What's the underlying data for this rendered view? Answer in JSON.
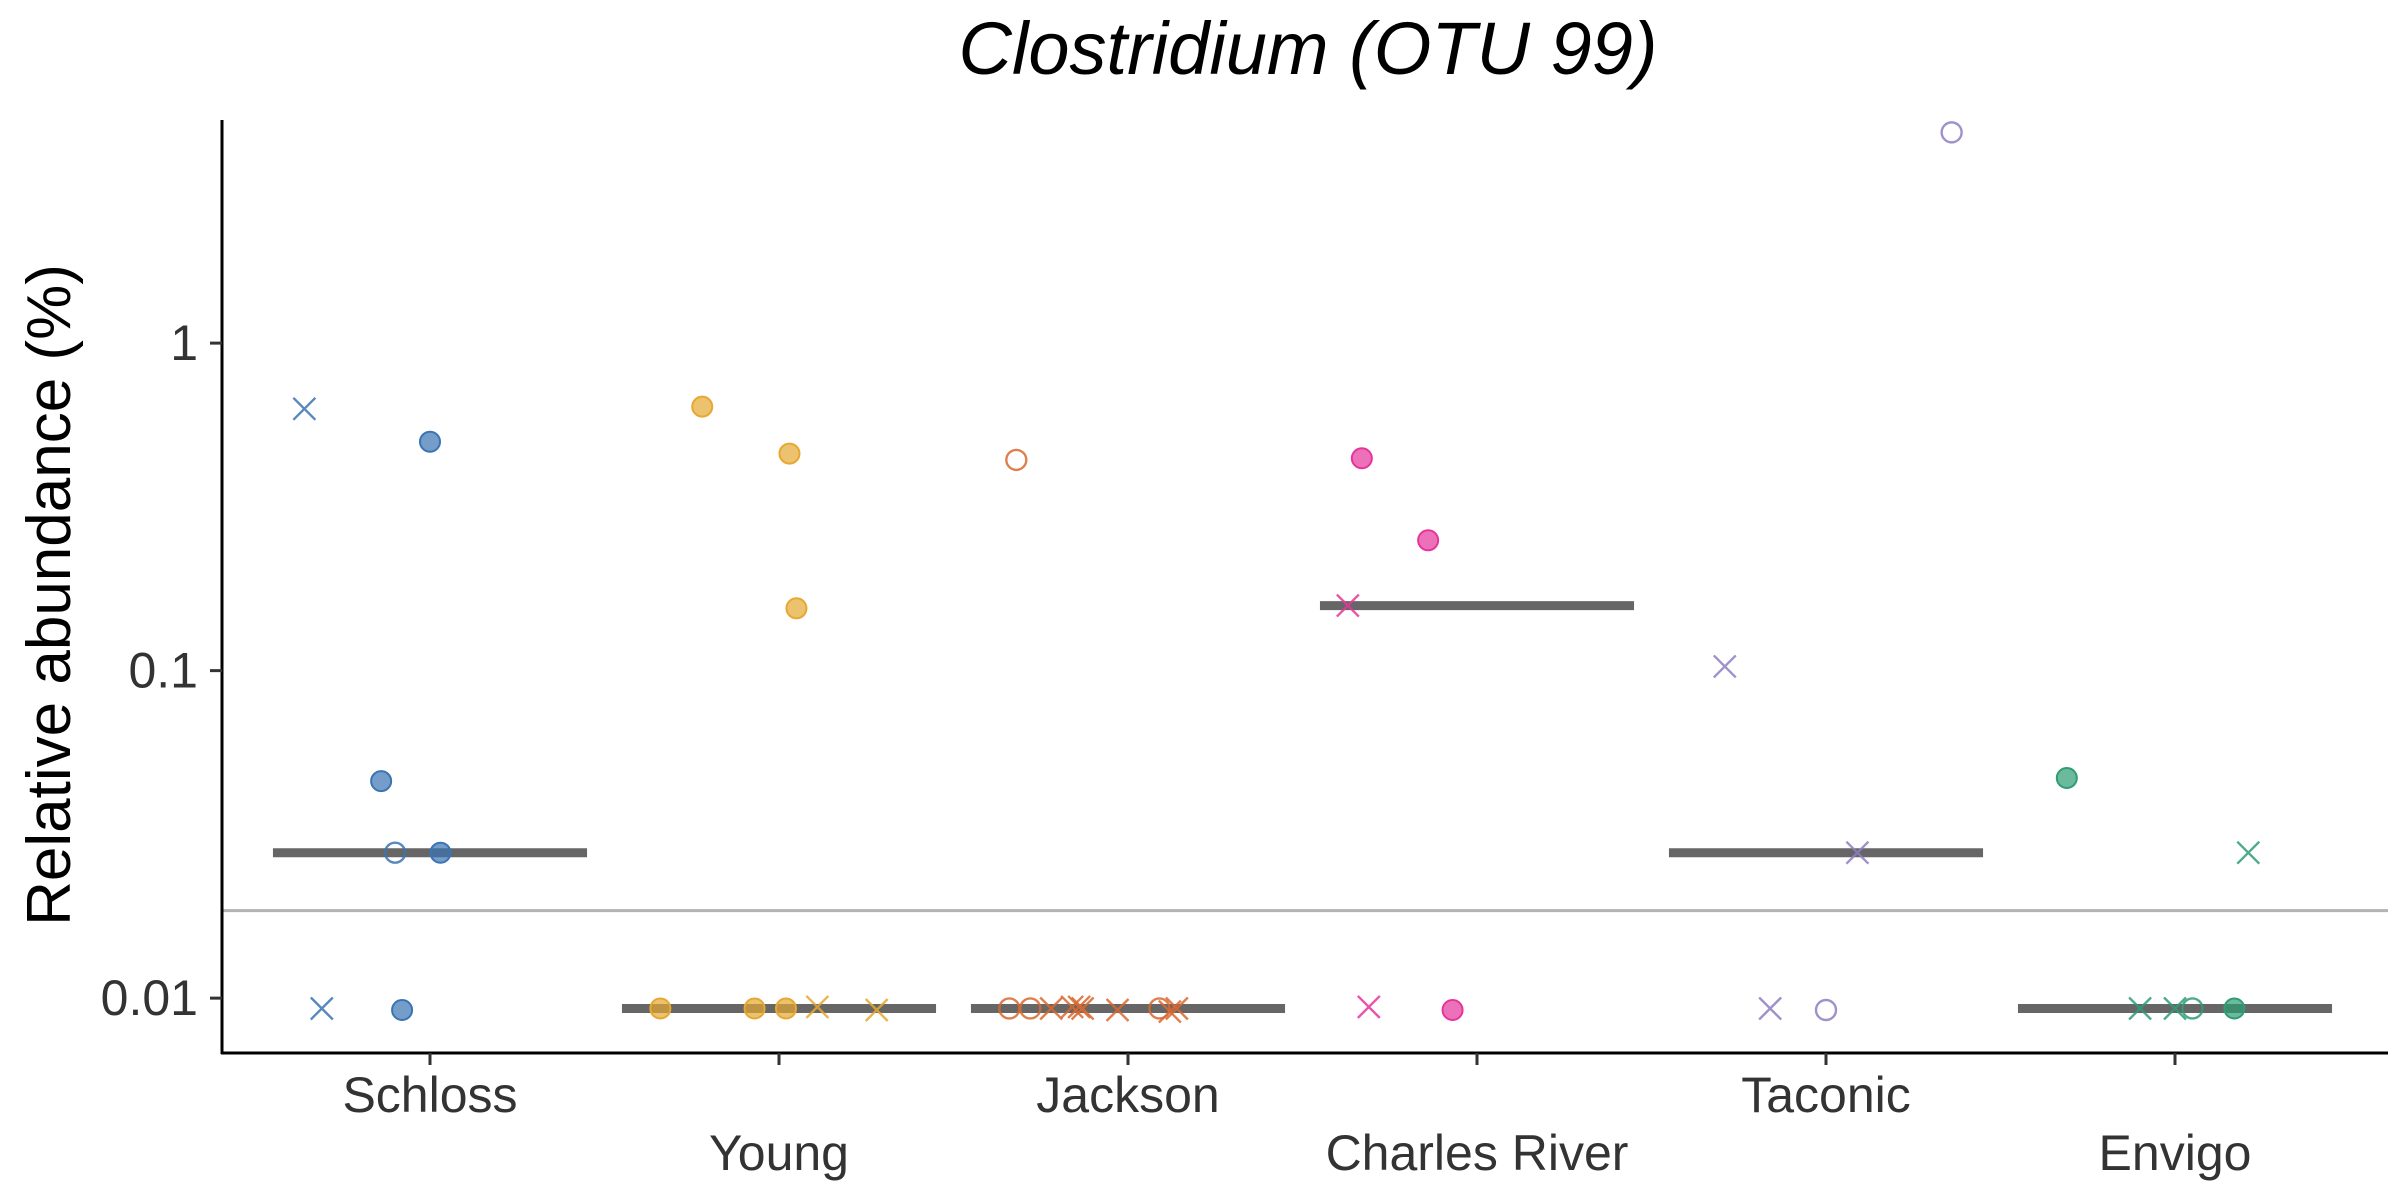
{
  "chart_data": {
    "type": "scatter",
    "title": "Clostridium (OTU 99)",
    "xlabel": "",
    "ylabel": "Relative abundance (%)",
    "y_scale": "log10",
    "ylim": [
      0.0068,
      4.8
    ],
    "y_ticks": [
      {
        "value": 0.01,
        "label": "0.01"
      },
      {
        "value": 0.1,
        "label": "0.1"
      },
      {
        "value": 1,
        "label": "1"
      }
    ],
    "grid": false,
    "legend": "none",
    "categories": [
      "Schloss",
      "Young",
      "Jackson",
      "Charles River",
      "Taconic",
      "Envigo"
    ],
    "limit_of_detection": 0.0185,
    "limit_line_color": "#b3b3b3",
    "median_color": "#666666",
    "groups": [
      {
        "name": "Schloss",
        "color": "#3b74b3",
        "median": 0.0278,
        "points": [
          {
            "offset": -0.36,
            "y": 0.63,
            "shape": "x"
          },
          {
            "offset": 0.0,
            "y": 0.5,
            "shape": "filled"
          },
          {
            "offset": -0.14,
            "y": 0.046,
            "shape": "filled"
          },
          {
            "offset": -0.1,
            "y": 0.0278,
            "shape": "open"
          },
          {
            "offset": 0.03,
            "y": 0.0278,
            "shape": "filled"
          },
          {
            "offset": -0.31,
            "y": 0.0093,
            "shape": "x"
          },
          {
            "offset": -0.08,
            "y": 0.0092,
            "shape": "filled"
          }
        ]
      },
      {
        "name": "Young",
        "color": "#e6a830",
        "median": 0.0093,
        "points": [
          {
            "offset": -0.22,
            "y": 0.64,
            "shape": "filled"
          },
          {
            "offset": 0.03,
            "y": 0.46,
            "shape": "filled"
          },
          {
            "offset": 0.05,
            "y": 0.155,
            "shape": "filled"
          },
          {
            "offset": -0.34,
            "y": 0.0093,
            "shape": "filled"
          },
          {
            "offset": -0.07,
            "y": 0.0093,
            "shape": "filled"
          },
          {
            "offset": 0.02,
            "y": 0.0093,
            "shape": "filled"
          },
          {
            "offset": 0.11,
            "y": 0.0094,
            "shape": "x"
          },
          {
            "offset": 0.28,
            "y": 0.0092,
            "shape": "x"
          }
        ]
      },
      {
        "name": "Jackson",
        "color": "#d9682f",
        "median": 0.0093,
        "points": [
          {
            "offset": -0.28,
            "y": 0.0093,
            "shape": "open"
          },
          {
            "offset": -0.32,
            "y": 0.44,
            "shape": "open"
          },
          {
            "offset": -0.34,
            "y": 0.0093,
            "shape": "open"
          },
          {
            "offset": -0.22,
            "y": 0.0093,
            "shape": "x"
          },
          {
            "offset": -0.16,
            "y": 0.0094,
            "shape": "x"
          },
          {
            "offset": -0.14,
            "y": 0.0094,
            "shape": "x"
          },
          {
            "offset": -0.13,
            "y": 0.0093,
            "shape": "x"
          },
          {
            "offset": -0.03,
            "y": 0.0092,
            "shape": "x"
          },
          {
            "offset": 0.09,
            "y": 0.0093,
            "shape": "open"
          },
          {
            "offset": 0.12,
            "y": 0.0091,
            "shape": "x"
          },
          {
            "offset": 0.14,
            "y": 0.0093,
            "shape": "x"
          }
        ]
      },
      {
        "name": "Charles River",
        "color": "#e6359a",
        "median": 0.158,
        "points": [
          {
            "offset": -0.33,
            "y": 0.445,
            "shape": "filled"
          },
          {
            "offset": -0.14,
            "y": 0.25,
            "shape": "filled"
          },
          {
            "offset": -0.37,
            "y": 0.158,
            "shape": "x"
          },
          {
            "offset": -0.31,
            "y": 0.0094,
            "shape": "x"
          },
          {
            "offset": -0.07,
            "y": 0.0092,
            "shape": "filled"
          }
        ]
      },
      {
        "name": "Taconic",
        "color": "#8e7ec1",
        "median": 0.0278,
        "points": [
          {
            "offset": 0.36,
            "y": 4.4,
            "shape": "open"
          },
          {
            "offset": -0.29,
            "y": 0.103,
            "shape": "x"
          },
          {
            "offset": 0.09,
            "y": 0.0278,
            "shape": "x"
          },
          {
            "offset": -0.16,
            "y": 0.0093,
            "shape": "x"
          },
          {
            "offset": 0.0,
            "y": 0.0092,
            "shape": "open"
          }
        ]
      },
      {
        "name": "Envigo",
        "color": "#2e9c75",
        "median": 0.0093,
        "points": [
          {
            "offset": -0.31,
            "y": 0.047,
            "shape": "filled"
          },
          {
            "offset": 0.21,
            "y": 0.0278,
            "shape": "x"
          },
          {
            "offset": -0.1,
            "y": 0.0093,
            "shape": "x"
          },
          {
            "offset": 0.0,
            "y": 0.0093,
            "shape": "x"
          },
          {
            "offset": 0.05,
            "y": 0.0093,
            "shape": "open"
          },
          {
            "offset": 0.17,
            "y": 0.0093,
            "shape": "filled"
          }
        ]
      }
    ]
  }
}
